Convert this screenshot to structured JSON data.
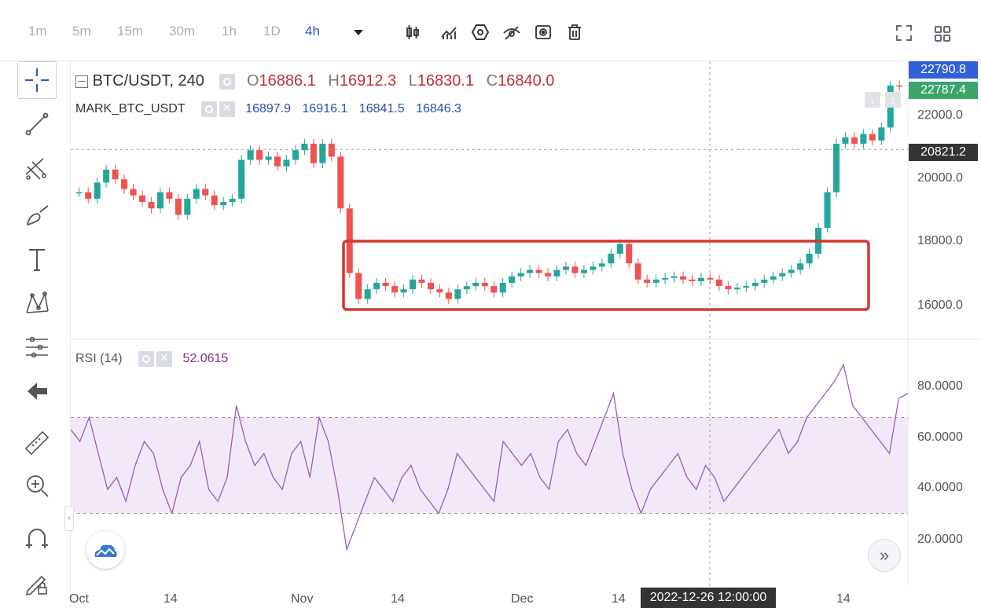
{
  "toolbar": {
    "timeframes": [
      "1m",
      "5m",
      "15m",
      "30m",
      "1h",
      "1D",
      "4h"
    ],
    "active_timeframe": "4h",
    "icons": [
      "dropdown-icon",
      "candles-icon",
      "indicators-icon",
      "settings-hex-icon",
      "hide-icon",
      "screenshot-icon",
      "delete-icon",
      "fullscreen-icon",
      "layout-grid-icon"
    ]
  },
  "left_tools": [
    "crosshair-icon",
    "trendline-icon",
    "fib-icon",
    "brush-icon",
    "text-icon",
    "pattern-icon",
    "measure-icon",
    "back-arrow-icon",
    "ruler-icon",
    "zoom-icon",
    "magnet-icon",
    "lock-draw-icon"
  ],
  "legend": {
    "symbol": "BTC/USDT, 240",
    "o_label": "O",
    "o": "16886.1",
    "h_label": "H",
    "h": "16912.3",
    "l_label": "L",
    "l": "16830.1",
    "c_label": "C",
    "c": "16840.0"
  },
  "mark": {
    "name": "MARK_BTC_USDT",
    "v1": "16897.9",
    "v2": "16916.1",
    "v3": "16841.5",
    "v4": "16846.3"
  },
  "rsi": {
    "name": "RSI (14)",
    "value": "52.0615"
  },
  "price_axis": [
    "22000.0",
    "20000.0",
    "18000.0",
    "16000.0"
  ],
  "rsi_axis": [
    "80.0000",
    "60.0000",
    "40.0000",
    "20.0000"
  ],
  "price_tags": {
    "last": "22790.8",
    "mark": "22787.4",
    "cursor": "20821.2"
  },
  "time_axis": [
    "Oct",
    "14",
    "Nov",
    "14",
    "Dec",
    "14",
    "14"
  ],
  "cursor_time": "2022-12-26 12:00:00",
  "colors": {
    "up": "#26a69a",
    "down": "#ef5350",
    "box": "#d6372e",
    "rsi": "#9a5bbf",
    "rsi_band": "#f3e8f7",
    "accent": "#2a57c6"
  },
  "chart_data": {
    "type": "line",
    "price_series": [
      19500,
      19300,
      19800,
      20200,
      19900,
      19600,
      19400,
      19200,
      19000,
      19500,
      19300,
      18800,
      19300,
      19600,
      19400,
      19100,
      19200,
      19300,
      20500,
      20800,
      20500,
      20600,
      20300,
      20500,
      20800,
      21000,
      20400,
      21000,
      20600,
      19000,
      17000,
      16200,
      16500,
      16700,
      16600,
      16400,
      16500,
      16800,
      16700,
      16500,
      16400,
      16200,
      16500,
      16600,
      16700,
      16600,
      16400,
      16700,
      16900,
      17000,
      17100,
      17000,
      16900,
      17100,
      17200,
      17000,
      17100,
      17200,
      17300,
      17600,
      17900,
      17300,
      16800,
      16700,
      16800,
      16850,
      16900,
      16800,
      16750,
      16850,
      16800,
      16600,
      16500,
      16550,
      16600,
      16700,
      16800,
      16900,
      17000,
      17100,
      17300,
      17600,
      18400,
      19500,
      21000,
      21200,
      21000,
      21300,
      21100,
      21500,
      22800,
      22790
    ],
    "rsi_series": [
      65,
      60,
      70,
      55,
      40,
      45,
      35,
      50,
      60,
      55,
      40,
      30,
      45,
      50,
      60,
      40,
      35,
      45,
      75,
      60,
      50,
      55,
      45,
      40,
      55,
      60,
      45,
      70,
      60,
      40,
      15,
      25,
      35,
      45,
      40,
      35,
      45,
      50,
      40,
      35,
      30,
      40,
      55,
      50,
      45,
      40,
      35,
      60,
      55,
      50,
      55,
      45,
      40,
      60,
      65,
      55,
      50,
      60,
      70,
      80,
      55,
      40,
      30,
      40,
      45,
      50,
      55,
      45,
      40,
      50,
      45,
      35,
      40,
      45,
      50,
      55,
      60,
      65,
      55,
      60,
      70,
      75,
      80,
      85,
      92,
      75,
      70,
      65,
      60,
      55,
      78,
      80
    ],
    "price_range": [
      15000,
      23500
    ],
    "rsi_range": [
      0,
      100
    ],
    "rsi_band": [
      30,
      70
    ]
  }
}
